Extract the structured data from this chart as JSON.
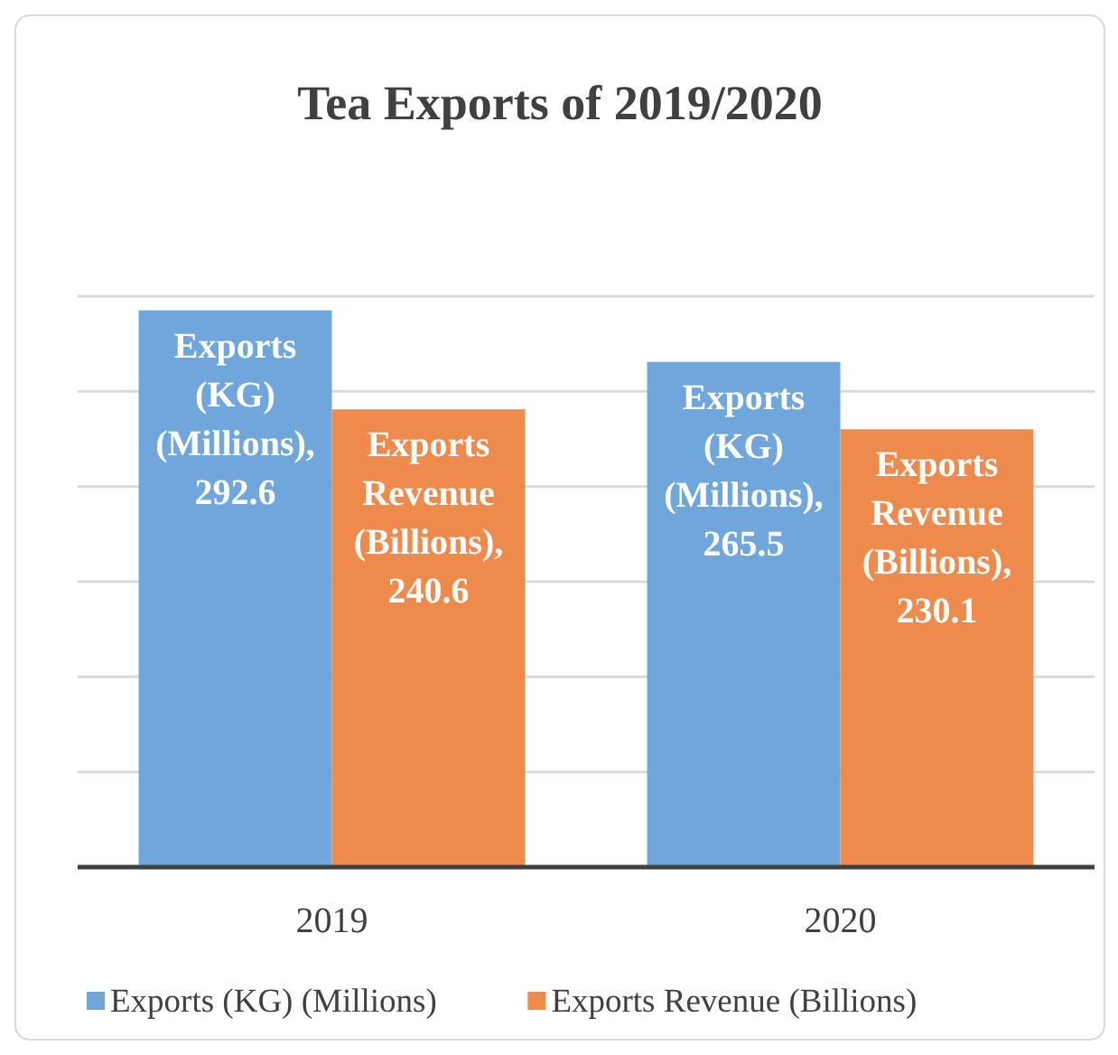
{
  "chart_data": {
    "type": "bar",
    "title": "Tea Exports of 2019/2020",
    "categories": [
      "2019",
      "2020"
    ],
    "series": [
      {
        "name": "Exports (KG) (Millions)",
        "color": "#6fa6dc",
        "values": [
          292.6,
          265.5
        ],
        "value_labels": [
          "Exports (KG) (Millions), 292.6",
          "Exports (KG) (Millions), 265.5"
        ]
      },
      {
        "name": "Exports Revenue (Billions)",
        "color": "#ee8a4b",
        "values": [
          240.6,
          230.1
        ],
        "value_labels": [
          "Exports Revenue (Billions), 240.6",
          "Exports Revenue (Billions), 230.1"
        ]
      }
    ],
    "ylim": [
      0,
      300
    ],
    "yticks": [
      {
        "value": 0,
        "label": null
      },
      {
        "value": 50,
        "label": null
      },
      {
        "value": 100,
        "label": null
      },
      {
        "value": 150,
        "label": null
      },
      {
        "value": 200,
        "label": null
      },
      {
        "value": 250,
        "label": null
      },
      {
        "value": 300,
        "label": null
      }
    ],
    "grid": "y",
    "tick_labels": "x",
    "legend": "bottom"
  }
}
